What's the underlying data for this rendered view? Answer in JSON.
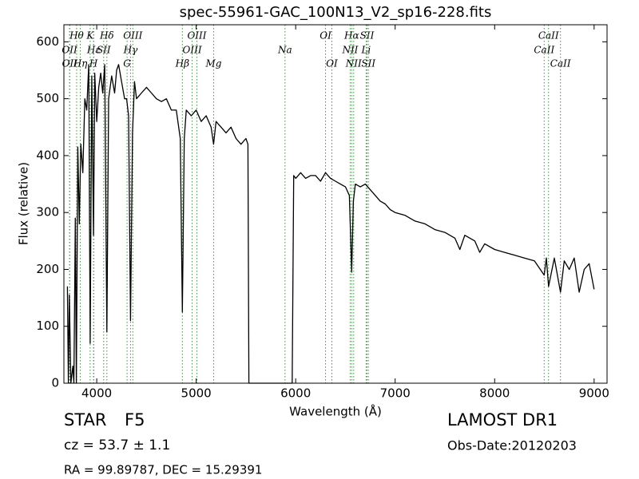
{
  "chart_data": {
    "type": "line",
    "title": "spec-55961-GAC_100N13_V2_sp16-228.fits",
    "x_label": "Wavelength (Å)",
    "y_label": "Flux (relative)",
    "color": "#000000",
    "annotation_color": "#2ca02c",
    "xlim": [
      3670,
      9130
    ],
    "ylim": [
      0,
      630
    ],
    "xticks": [
      4000,
      5000,
      6000,
      7000,
      8000,
      9000
    ],
    "yticks": [
      0,
      100,
      200,
      300,
      400,
      500,
      600
    ],
    "x": [
      3705,
      3715,
      3725,
      3740,
      3760,
      3770,
      3785,
      3795,
      3810,
      3825,
      3840,
      3860,
      3880,
      3900,
      3920,
      3934,
      3950,
      3968,
      3980,
      4000,
      4020,
      4040,
      4060,
      4080,
      4102,
      4120,
      4150,
      4180,
      4200,
      4220,
      4250,
      4280,
      4300,
      4320,
      4340,
      4360,
      4380,
      4400,
      4450,
      4500,
      4550,
      4600,
      4650,
      4700,
      4750,
      4800,
      4840,
      4861,
      4880,
      4900,
      4950,
      5000,
      5050,
      5100,
      5150,
      5175,
      5200,
      5250,
      5300,
      5350,
      5400,
      5450,
      5500,
      5520,
      5530,
      5950,
      5965,
      5980,
      6000,
      6050,
      6100,
      6150,
      6200,
      6250,
      6300,
      6350,
      6400,
      6450,
      6500,
      6540,
      6563,
      6580,
      6600,
      6650,
      6700,
      6750,
      6800,
      6850,
      6900,
      6950,
      7000,
      7100,
      7200,
      7300,
      7400,
      7500,
      7600,
      7650,
      7700,
      7800,
      7850,
      7900,
      8000,
      8100,
      8200,
      8300,
      8400,
      8498,
      8520,
      8542,
      8600,
      8662,
      8700,
      8750,
      8800,
      8850,
      8900,
      8950,
      9000
    ],
    "values": [
      170,
      0,
      155,
      0,
      30,
      0,
      290,
      0,
      415,
      280,
      420,
      370,
      500,
      480,
      560,
      70,
      540,
      260,
      545,
      460,
      520,
      545,
      510,
      560,
      90,
      500,
      540,
      510,
      550,
      560,
      530,
      500,
      500,
      470,
      110,
      440,
      530,
      500,
      510,
      520,
      510,
      500,
      495,
      500,
      480,
      480,
      430,
      125,
      430,
      480,
      470,
      480,
      460,
      470,
      450,
      420,
      460,
      450,
      440,
      450,
      430,
      420,
      430,
      420,
      0,
      0,
      0,
      365,
      360,
      370,
      360,
      365,
      365,
      355,
      370,
      360,
      355,
      350,
      345,
      330,
      195,
      320,
      350,
      345,
      350,
      340,
      330,
      320,
      315,
      305,
      300,
      295,
      285,
      280,
      270,
      265,
      255,
      235,
      260,
      250,
      230,
      245,
      235,
      230,
      225,
      220,
      215,
      190,
      220,
      170,
      220,
      160,
      215,
      200,
      220,
      160,
      200,
      210,
      165
    ],
    "annotations": [
      {
        "label": "Hθ",
        "x": 3798
      },
      {
        "label": "K",
        "x": 3934
      },
      {
        "label": "Hδ",
        "x": 4102
      },
      {
        "label": "OIII",
        "x": 4363
      },
      {
        "label": "OIII",
        "x": 5007
      },
      {
        "label": "OI",
        "x": 6300
      },
      {
        "label": "Hα",
        "x": 6563
      },
      {
        "label": "SII",
        "x": 6717
      },
      {
        "label": "CaII",
        "x": 8542
      },
      {
        "label": "OII",
        "x": 3727
      },
      {
        "label": "Hε",
        "x": 3970
      },
      {
        "label": "SII",
        "x": 4070
      },
      {
        "label": "Hγ",
        "x": 4340
      },
      {
        "label": "OIII",
        "x": 4959
      },
      {
        "label": "Na",
        "x": 5893
      },
      {
        "label": "NII",
        "x": 6548
      },
      {
        "label": "Li",
        "x": 6708
      },
      {
        "label": "CaII",
        "x": 8498
      },
      {
        "label": "OII",
        "x": 3729
      },
      {
        "label": "Hη",
        "x": 3835
      },
      {
        "label": "H",
        "x": 3968
      },
      {
        "label": "G",
        "x": 4305
      },
      {
        "label": "Hβ",
        "x": 4861
      },
      {
        "label": "Mg",
        "x": 5175
      },
      {
        "label": "OI",
        "x": 6364
      },
      {
        "label": "NII",
        "x": 6583
      },
      {
        "label": "SII",
        "x": 6731
      },
      {
        "label": "CaII",
        "x": 8662
      }
    ]
  },
  "info": {
    "class": "STAR",
    "subclass": "F5",
    "survey": "LAMOST DR1",
    "cz": "cz = 53.7 ± 1.1",
    "obs_date": "Obs-Date:20120203",
    "coords": "RA = 99.89787, DEC = 15.29391"
  }
}
